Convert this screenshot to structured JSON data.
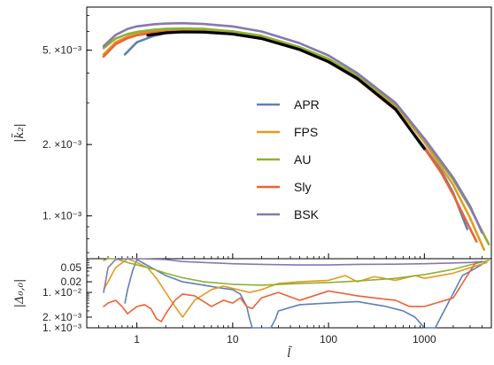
{
  "chart_data": [
    {
      "type": "line",
      "xscale": "log",
      "yscale": "log",
      "xlim": [
        0.3,
        5000
      ],
      "ylim": [
        0.00066,
        0.0076
      ],
      "xticks": [
        1,
        10,
        100,
        1000
      ],
      "xticklabels": [
        "1",
        "10",
        "100",
        "1000"
      ],
      "yticks": [
        0.001,
        0.002,
        0.005
      ],
      "yticklabels": [
        "1. ×10⁻³",
        "2. ×10⁻³",
        "5. ×10⁻³"
      ],
      "ylabel": "|k̃₂|",
      "legend_position": "center-right",
      "series": [
        {
          "name": "APR",
          "color": "#5E81B5",
          "x": [
            0.75,
            1.0,
            1.5,
            2,
            3,
            5,
            10,
            20,
            50,
            100,
            200,
            500,
            1000,
            1500,
            2000,
            2800
          ],
          "y": [
            0.0048,
            0.0054,
            0.00575,
            0.0059,
            0.00598,
            0.00597,
            0.00585,
            0.0056,
            0.00505,
            0.00448,
            0.0038,
            0.0028,
            0.00195,
            0.00155,
            0.00125,
            0.00088
          ]
        },
        {
          "name": "FPS",
          "color": "#E19C24",
          "x": [
            0.45,
            0.6,
            0.8,
            1.0,
            1.5,
            2,
            3,
            5,
            10,
            20,
            50,
            100,
            200,
            500,
            1000,
            2000,
            3000,
            4200
          ],
          "y": [
            0.0048,
            0.0054,
            0.0057,
            0.00585,
            0.006,
            0.00607,
            0.0061,
            0.00608,
            0.00595,
            0.0057,
            0.0051,
            0.00455,
            0.00387,
            0.0029,
            0.00205,
            0.00135,
            0.00098,
            0.00072
          ]
        },
        {
          "name": "AU",
          "color": "#8FB032",
          "x": [
            0.45,
            0.6,
            0.8,
            1.0,
            1.5,
            2,
            3,
            5,
            10,
            20,
            50,
            100,
            200,
            500,
            1000,
            2000,
            3000,
            4700
          ],
          "y": [
            0.0051,
            0.0056,
            0.00585,
            0.00597,
            0.0061,
            0.00615,
            0.00617,
            0.00615,
            0.006,
            0.00575,
            0.00515,
            0.0046,
            0.0039,
            0.00295,
            0.0021,
            0.00142,
            0.00108,
            0.00076
          ]
        },
        {
          "name": "Sly",
          "color": "#EB6235",
          "x": [
            0.45,
            0.6,
            0.8,
            1.0,
            1.5,
            2,
            3,
            5,
            10,
            20,
            50,
            100,
            200,
            500,
            1000,
            1500,
            2000,
            3500
          ],
          "y": [
            0.0047,
            0.0053,
            0.00562,
            0.00578,
            0.00593,
            0.00598,
            0.00601,
            0.00599,
            0.00586,
            0.0056,
            0.00502,
            0.00445,
            0.00377,
            0.0028,
            0.00193,
            0.00152,
            0.00123,
            0.00078
          ]
        },
        {
          "name": "BSK",
          "color": "#8778B3",
          "x": [
            0.45,
            0.6,
            0.8,
            1.0,
            1.5,
            2,
            3,
            5,
            10,
            20,
            50,
            100,
            200,
            500,
            1000,
            2000,
            3000,
            4000
          ],
          "y": [
            0.0052,
            0.0058,
            0.00615,
            0.0063,
            0.00643,
            0.00648,
            0.0065,
            0.00645,
            0.0063,
            0.006,
            0.00535,
            0.00475,
            0.004,
            0.003,
            0.00212,
            0.00145,
            0.0011,
            0.00085
          ]
        },
        {
          "name": "",
          "color": "#000000",
          "x": [
            1.3,
            2,
            3,
            5,
            10,
            20,
            50,
            100,
            200,
            500,
            1000
          ],
          "y": [
            0.00578,
            0.00592,
            0.00597,
            0.00596,
            0.00585,
            0.0056,
            0.00503,
            0.00447,
            0.0038,
            0.00282,
            0.00192
          ]
        }
      ]
    },
    {
      "type": "line",
      "xscale": "log",
      "yscale": "log",
      "xlim": [
        0.3,
        5000
      ],
      "ylim": [
        0.001,
        0.09
      ],
      "xticks": [
        1,
        10,
        100,
        1000
      ],
      "xticklabels": [
        "1",
        "10",
        "100",
        "1000"
      ],
      "yticks": [
        0.001,
        0.002,
        0.01,
        0.02,
        0.05
      ],
      "yticklabels": [
        "1. ×10⁻³",
        "2. ×10⁻³",
        "1. ×10⁻²",
        "0.02",
        "0.05"
      ],
      "ylabel": "|Δ₀,₀|",
      "xlabel": "l̃",
      "series": [
        {
          "name": "APR",
          "color": "#5E81B5",
          "x": [
            0.75,
            0.8,
            0.9,
            1.0,
            2,
            3,
            5,
            8,
            10,
            12,
            14,
            15,
            16,
            20,
            25,
            28,
            30,
            50,
            100,
            200,
            400,
            600,
            800,
            1000,
            1150,
            1300,
            2500,
            3500,
            4300
          ],
          "y": [
            0.005,
            0.012,
            0.04,
            0.085,
            0.03,
            0.02,
            0.016,
            0.013,
            0.012,
            0.009,
            0.004,
            0.0018,
            0.0009,
            0.0009,
            0.0009,
            0.0018,
            0.003,
            0.0045,
            0.005,
            0.0055,
            0.004,
            0.003,
            0.002,
            0.001,
            0.0008,
            0.0008,
            0.03,
            0.05,
            0.07
          ]
        },
        {
          "name": "FPS",
          "color": "#E19C24",
          "x": [
            0.45,
            0.5,
            0.6,
            0.8,
            1.0,
            1.3,
            1.6,
            2.0,
            2.5,
            3.0,
            4.0,
            6.0,
            8.0,
            10.0,
            15.0,
            20.0,
            30.0,
            50.0,
            100.0,
            150.0,
            200.0,
            300.0,
            500.0,
            800.0,
            1000.0,
            2000.0,
            3000.0,
            4500.0
          ],
          "y": [
            0.012,
            0.02,
            0.05,
            0.09,
            0.07,
            0.05,
            0.025,
            0.01,
            0.004,
            0.002,
            0.006,
            0.012,
            0.015,
            0.013,
            0.01,
            0.012,
            0.018,
            0.02,
            0.022,
            0.03,
            0.02,
            0.028,
            0.022,
            0.03,
            0.025,
            0.035,
            0.05,
            0.07
          ]
        },
        {
          "name": "AU",
          "color": "#8FB032",
          "x": [
            0.45,
            0.5,
            0.6,
            0.8,
            1.0,
            1.5,
            2,
            3,
            5,
            10,
            20,
            50,
            100,
            200,
            500,
            1000,
            2000,
            3000,
            4700
          ],
          "y": [
            0.08,
            0.1,
            0.09,
            0.07,
            0.06,
            0.045,
            0.035,
            0.026,
            0.02,
            0.017,
            0.016,
            0.018,
            0.019,
            0.021,
            0.025,
            0.032,
            0.045,
            0.06,
            0.08
          ]
        },
        {
          "name": "Sly",
          "color": "#EB6235",
          "x": [
            0.45,
            0.5,
            0.6,
            0.7,
            0.8,
            1.0,
            1.2,
            1.4,
            1.6,
            1.8,
            2.0,
            2.5,
            3.0,
            4.0,
            6.0,
            8.0,
            10.0,
            12.0,
            14.0,
            16.0,
            20.0,
            30.0,
            50.0,
            70.0,
            100.0,
            200.0,
            300.0,
            500.0,
            700.0,
            1000.0,
            2000.0,
            3000.0,
            3500.0
          ],
          "y": [
            0.004,
            0.005,
            0.006,
            0.004,
            0.0025,
            0.004,
            0.0045,
            0.0035,
            0.0018,
            0.0015,
            0.0025,
            0.006,
            0.009,
            0.008,
            0.004,
            0.006,
            0.005,
            0.007,
            0.004,
            0.0035,
            0.007,
            0.01,
            0.006,
            0.008,
            0.011,
            0.008,
            0.007,
            0.006,
            0.004,
            0.004,
            0.007,
            0.04,
            0.075
          ]
        },
        {
          "name": "BSK",
          "color": "#8778B3",
          "x": [
            0.45,
            0.5,
            0.6,
            0.8,
            1.0,
            2,
            3,
            5,
            10,
            20,
            50,
            100,
            200,
            500,
            1000,
            2000,
            3000,
            4000
          ],
          "y": [
            0.01,
            0.05,
            0.085,
            0.09,
            0.09,
            0.085,
            0.075,
            0.07,
            0.065,
            0.062,
            0.06,
            0.06,
            0.062,
            0.063,
            0.065,
            0.068,
            0.07,
            0.075
          ]
        }
      ]
    }
  ]
}
